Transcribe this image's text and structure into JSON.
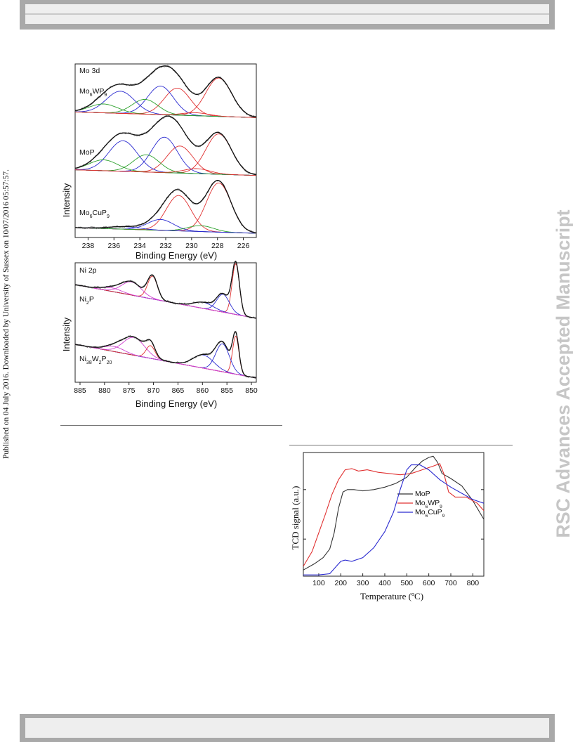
{
  "published_text": "Published on 04 July 2016. Downloaded by University of Sussex on 10/07/2016 05:57:57.",
  "watermark": "RSC Advances Accepted Manuscript",
  "figures": {
    "mo3d": {
      "panel_title": "Mo 3d",
      "samples": [
        {
          "base": "Mo",
          "sub": "6",
          "rest": "WP",
          "sub2": "9"
        },
        {
          "base": "MoP",
          "sub": "",
          "rest": "",
          "sub2": ""
        },
        {
          "base": "Mo",
          "sub": "6",
          "rest": "CuP",
          "sub2": "9"
        }
      ],
      "ylabel": "Intensity",
      "xlabel": "Binding Energy (eV)"
    },
    "ni2p": {
      "panel_title": "Ni 2p",
      "sample1": {
        "base": "Ni",
        "sub": "2",
        "rest": "P"
      },
      "sample2": {
        "base": "Ni",
        "sub": "38",
        "mid": "W",
        "sub2": "2",
        "rest": "P",
        "sub3": "20"
      },
      "ylabel": "Intensity",
      "xlabel": "Binding Energy (eV)"
    },
    "tcd": {
      "ylabel": "TCD signal (a.u.)",
      "xlabel": "Temperature (ºC)",
      "legend": [
        {
          "base": "MoP",
          "sub": "",
          "rest": "",
          "sub2": "",
          "color": "#333333"
        },
        {
          "base": "Mo",
          "sub": "6",
          "rest": "WP",
          "sub2": "9",
          "color": "#e03030"
        },
        {
          "base": "Mo",
          "sub": "6",
          "rest": "CuP",
          "sub2": "9",
          "color": "#2a2ad0"
        }
      ]
    }
  },
  "chart_data": [
    {
      "type": "line",
      "title": "Mo 3d",
      "xlabel": "Binding Energy (eV)",
      "ylabel": "Intensity",
      "xlim": [
        239,
        225
      ],
      "x_ticks": [
        238,
        236,
        234,
        232,
        230,
        228,
        226
      ],
      "x_reversed": true,
      "series": [
        {
          "name": "Mo6WP9",
          "peaks": [
            {
              "center": 227.9,
              "height": 0.78,
              "width": 1.0
            },
            {
              "center": 231.1,
              "height": 0.55,
              "width": 1.0
            },
            {
              "center": 232.4,
              "height": 0.58,
              "width": 1.0
            },
            {
              "center": 233.6,
              "height": 0.3,
              "width": 1.0
            },
            {
              "center": 235.5,
              "height": 0.45,
              "width": 1.1
            },
            {
              "center": 236.8,
              "height": 0.18,
              "width": 1.1
            },
            {
              "center": 229.7,
              "height": 0.06,
              "width": 1.0
            }
          ]
        },
        {
          "name": "MoP",
          "peaks": [
            {
              "center": 227.9,
              "height": 0.82,
              "width": 1.0
            },
            {
              "center": 230.9,
              "height": 0.55,
              "width": 1.0
            },
            {
              "center": 232.1,
              "height": 0.72,
              "width": 1.0
            },
            {
              "center": 233.5,
              "height": 0.35,
              "width": 1.0
            },
            {
              "center": 235.3,
              "height": 0.62,
              "width": 1.1
            },
            {
              "center": 236.8,
              "height": 0.22,
              "width": 1.1
            },
            {
              "center": 229.6,
              "height": 0.1,
              "width": 1.0
            }
          ]
        },
        {
          "name": "Mo6CuP9",
          "peaks": [
            {
              "center": 227.9,
              "height": 1.0,
              "width": 0.95
            },
            {
              "center": 231.0,
              "height": 0.72,
              "width": 0.95
            },
            {
              "center": 232.4,
              "height": 0.22,
              "width": 1.0
            },
            {
              "center": 229.3,
              "height": 0.12,
              "width": 1.0
            },
            {
              "center": 235.2,
              "height": 0.05,
              "width": 1.2
            }
          ]
        }
      ]
    },
    {
      "type": "line",
      "title": "Ni 2p",
      "xlabel": "Binding Energy (eV)",
      "ylabel": "Intensity",
      "xlim": [
        886,
        849
      ],
      "x_ticks": [
        885,
        880,
        875,
        870,
        865,
        860,
        855,
        850
      ],
      "x_reversed": true,
      "series": [
        {
          "name": "Ni2P",
          "peaks": [
            {
              "center": 853.2,
              "height": 1.0,
              "width": 0.75
            },
            {
              "center": 855.8,
              "height": 0.35,
              "width": 1.3
            },
            {
              "center": 859.8,
              "height": 0.12,
              "width": 2.0
            },
            {
              "center": 870.2,
              "height": 0.45,
              "width": 1.0
            },
            {
              "center": 874.5,
              "height": 0.26,
              "width": 2.0
            },
            {
              "center": 878.5,
              "height": 0.07,
              "width": 2.0
            }
          ]
        },
        {
          "name": "Ni38W2P20",
          "peaks": [
            {
              "center": 853.2,
              "height": 0.75,
              "width": 0.65
            },
            {
              "center": 855.9,
              "height": 0.55,
              "width": 1.4
            },
            {
              "center": 859.8,
              "height": 0.26,
              "width": 2.1
            },
            {
              "center": 870.6,
              "height": 0.25,
              "width": 0.9
            },
            {
              "center": 874.0,
              "height": 0.35,
              "width": 2.2
            },
            {
              "center": 878.0,
              "height": 0.1,
              "width": 2.0
            }
          ]
        }
      ]
    },
    {
      "type": "line",
      "title": "",
      "xlabel": "Temperature (ºC)",
      "ylabel": "TCD signal (a.u.)",
      "xlim": [
        30,
        850
      ],
      "x_ticks": [
        100,
        200,
        300,
        400,
        500,
        600,
        700,
        800
      ],
      "series": [
        {
          "name": "MoP",
          "x": [
            30,
            80,
            120,
            150,
            170,
            190,
            210,
            230,
            260,
            300,
            350,
            400,
            450,
            500,
            540,
            570,
            600,
            620,
            640,
            660,
            700,
            750,
            800,
            850
          ],
          "y": [
            0.05,
            0.1,
            0.15,
            0.22,
            0.35,
            0.55,
            0.68,
            0.7,
            0.7,
            0.69,
            0.7,
            0.72,
            0.75,
            0.8,
            0.88,
            0.93,
            0.96,
            0.97,
            0.92,
            0.83,
            0.79,
            0.73,
            0.61,
            0.46
          ]
        },
        {
          "name": "Mo6WP9",
          "x": [
            30,
            70,
            100,
            130,
            160,
            190,
            220,
            250,
            280,
            320,
            370,
            420,
            470,
            520,
            570,
            620,
            650,
            670,
            690,
            720,
            770,
            820,
            850
          ],
          "y": [
            0.08,
            0.2,
            0.35,
            0.5,
            0.66,
            0.78,
            0.86,
            0.87,
            0.85,
            0.86,
            0.84,
            0.83,
            0.82,
            0.83,
            0.86,
            0.89,
            0.91,
            0.82,
            0.68,
            0.64,
            0.64,
            0.59,
            0.53
          ]
        },
        {
          "name": "Mo6CuP9",
          "x": [
            30,
            100,
            150,
            180,
            200,
            220,
            250,
            300,
            350,
            400,
            440,
            470,
            500,
            520,
            560,
            600,
            650,
            700,
            750,
            800,
            850
          ],
          "y": [
            0.01,
            0.01,
            0.02,
            0.08,
            0.12,
            0.13,
            0.12,
            0.15,
            0.23,
            0.36,
            0.52,
            0.7,
            0.86,
            0.9,
            0.9,
            0.86,
            0.78,
            0.72,
            0.67,
            0.62,
            0.59
          ]
        }
      ]
    }
  ]
}
